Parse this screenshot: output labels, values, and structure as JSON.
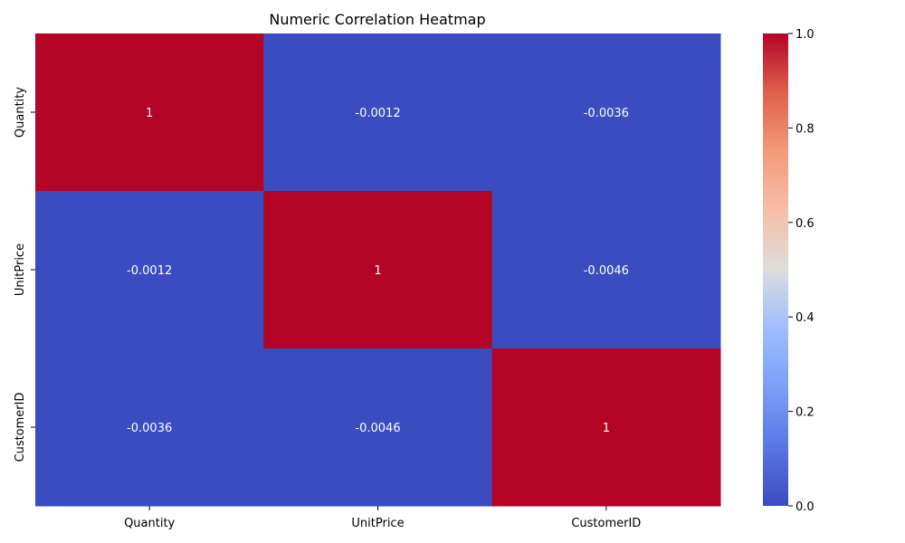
{
  "chart_data": {
    "type": "heatmap",
    "title": "Numeric Correlation Heatmap",
    "x_categories": [
      "Quantity",
      "UnitPrice",
      "CustomerID"
    ],
    "y_categories": [
      "Quantity",
      "UnitPrice",
      "CustomerID"
    ],
    "values": [
      [
        1,
        -0.0012,
        -0.0036
      ],
      [
        -0.0012,
        1,
        -0.0046
      ],
      [
        -0.0036,
        -0.0046,
        1
      ]
    ],
    "cell_labels": [
      [
        "1",
        "-0.0012",
        "-0.0036"
      ],
      [
        "-0.0012",
        "1",
        "-0.0046"
      ],
      [
        "-0.0036",
        "-0.0046",
        "1"
      ]
    ],
    "colormap": "coolwarm",
    "colorbar": {
      "range": [
        0.0,
        1.0
      ],
      "ticks": [
        "0.0",
        "0.2",
        "0.4",
        "0.6",
        "0.8",
        "1.0"
      ]
    },
    "colors": {
      "low": "#3b4cc0",
      "high": "#b40426"
    }
  }
}
